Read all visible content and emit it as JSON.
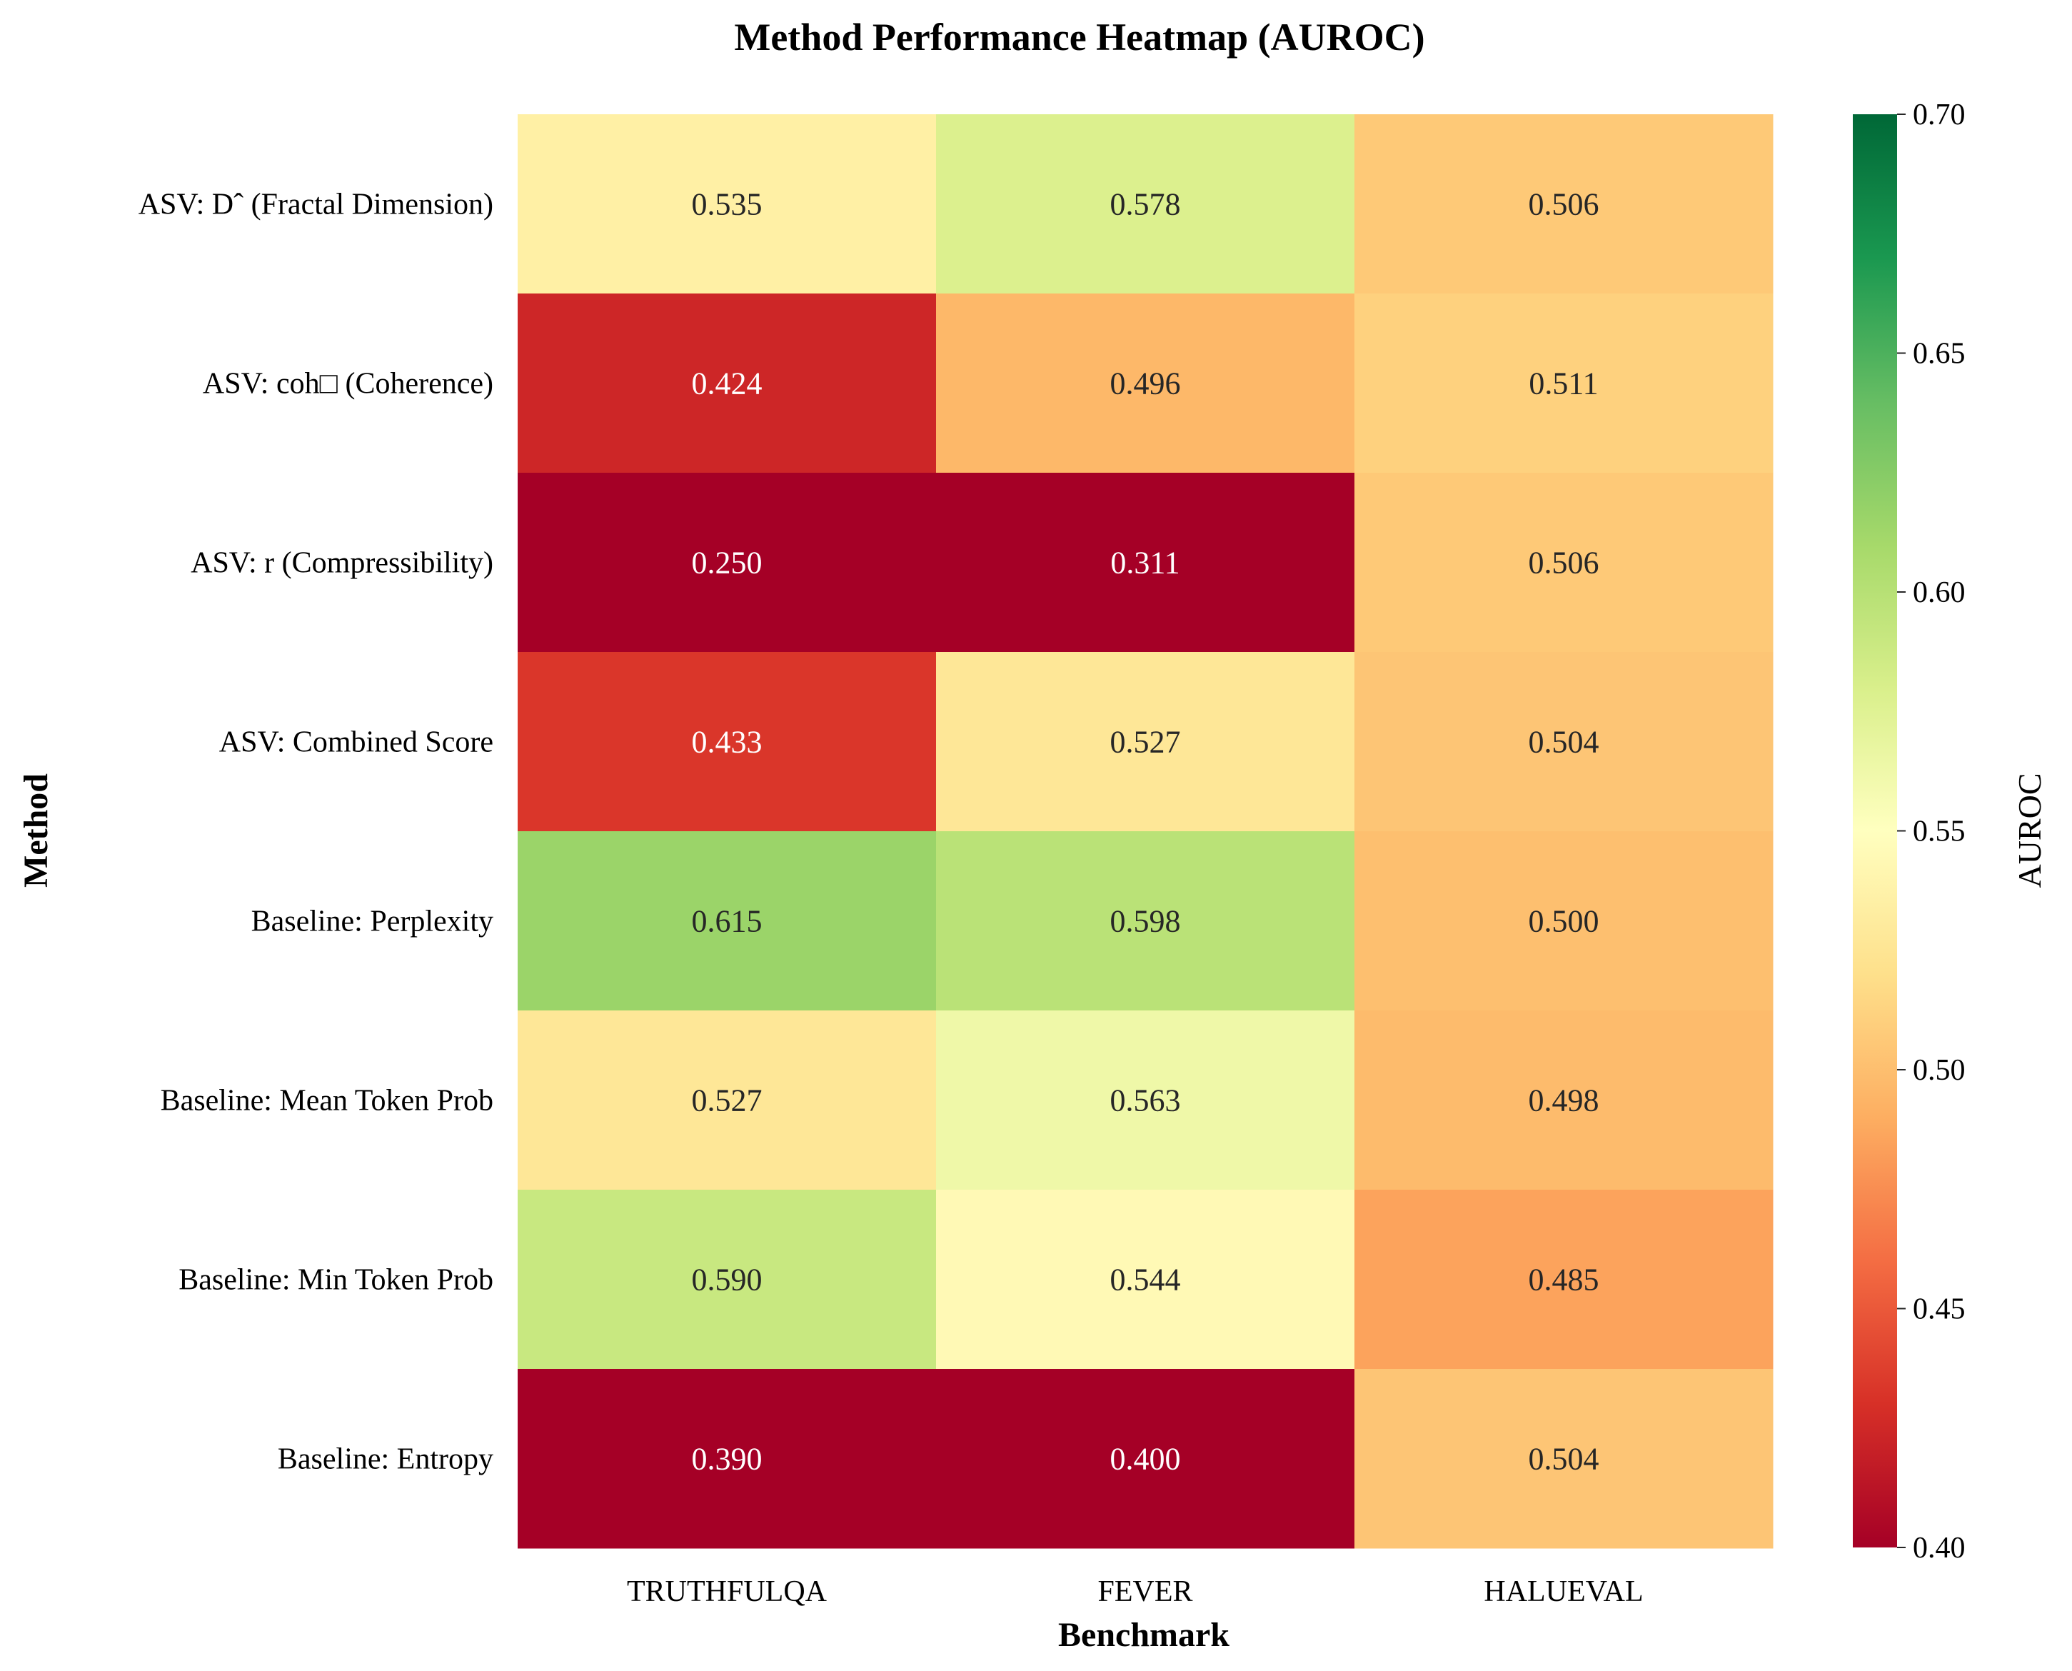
{
  "chart_data": {
    "type": "heatmap",
    "title": "Method Performance Heatmap (AUROC)",
    "xlabel": "Benchmark",
    "ylabel": "Method",
    "x_categories": [
      "TRUTHFULQA",
      "FEVER",
      "HALUEVAL"
    ],
    "y_categories": [
      "ASV: Dˆ (Fractal Dimension)",
      "ASV: coh□ (Coherence)",
      "ASV: r (Compressibility)",
      "ASV: Combined Score",
      "Baseline: Perplexity",
      "Baseline: Mean Token Prob",
      "Baseline: Min Token Prob",
      "Baseline: Entropy"
    ],
    "values": [
      [
        0.535,
        0.578,
        0.506
      ],
      [
        0.424,
        0.496,
        0.511
      ],
      [
        0.25,
        0.311,
        0.506
      ],
      [
        0.433,
        0.527,
        0.504
      ],
      [
        0.615,
        0.598,
        0.5
      ],
      [
        0.527,
        0.563,
        0.498
      ],
      [
        0.59,
        0.544,
        0.485
      ],
      [
        0.39,
        0.4,
        0.504
      ]
    ],
    "value_labels": [
      [
        "0.535",
        "0.578",
        "0.506"
      ],
      [
        "0.424",
        "0.496",
        "0.511"
      ],
      [
        "0.250",
        "0.311",
        "0.506"
      ],
      [
        "0.433",
        "0.527",
        "0.504"
      ],
      [
        "0.615",
        "0.598",
        "0.500"
      ],
      [
        "0.527",
        "0.563",
        "0.498"
      ],
      [
        "0.590",
        "0.544",
        "0.485"
      ],
      [
        "0.390",
        "0.400",
        "0.504"
      ]
    ],
    "colorbar": {
      "label": "AUROC",
      "range": [
        0.4,
        0.7
      ],
      "ticks": [
        0.4,
        0.45,
        0.5,
        0.55,
        0.6,
        0.65,
        0.7
      ],
      "tick_labels": [
        "0.40",
        "0.45",
        "0.50",
        "0.55",
        "0.60",
        "0.65",
        "0.70"
      ],
      "colormap": "RdYlGn",
      "colormap_stops": [
        "#a50026",
        "#d73027",
        "#f46d43",
        "#fdae61",
        "#fee08b",
        "#ffffbf",
        "#d9ef8b",
        "#a6d96a",
        "#66bd63",
        "#1a9850",
        "#006837"
      ]
    },
    "grid": false,
    "legend": "colorbar-right"
  }
}
